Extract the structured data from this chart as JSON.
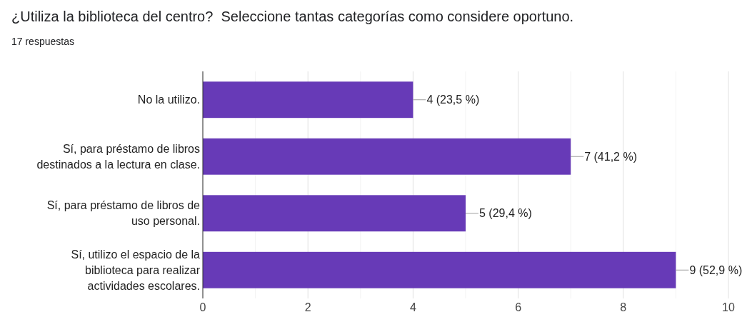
{
  "chart_data": {
    "type": "bar",
    "orientation": "horizontal",
    "title": "¿Utiliza la biblioteca del centro?  Seleccione tantas categorías como considere oportuno.",
    "subtitle": "17 respuestas",
    "categories": [
      "No la utilizo.",
      "Sí, para préstamo de libros destinados a la lectura en clase.",
      "Sí, para préstamo de libros de uso personal.",
      "Sí, utilizo el espacio de la biblioteca para realizar actividades escolares."
    ],
    "values": [
      4,
      7,
      5,
      9
    ],
    "color": "#673ab7",
    "value_labels": [
      "4 (23,5 %)",
      "7 (41,2 %)",
      "5 (29,4 %)",
      "9 (52,9 %)"
    ],
    "xlim": [
      0,
      10
    ],
    "xticks": [
      0,
      {
        "value": 1,
        "label": null
      },
      2,
      {
        "value": 3,
        "label": null
      },
      4,
      {
        "value": 5,
        "label": null
      },
      6,
      {
        "value": 7,
        "label": null
      },
      8,
      {
        "value": 9,
        "label": null
      },
      10
    ],
    "grid": true
  }
}
